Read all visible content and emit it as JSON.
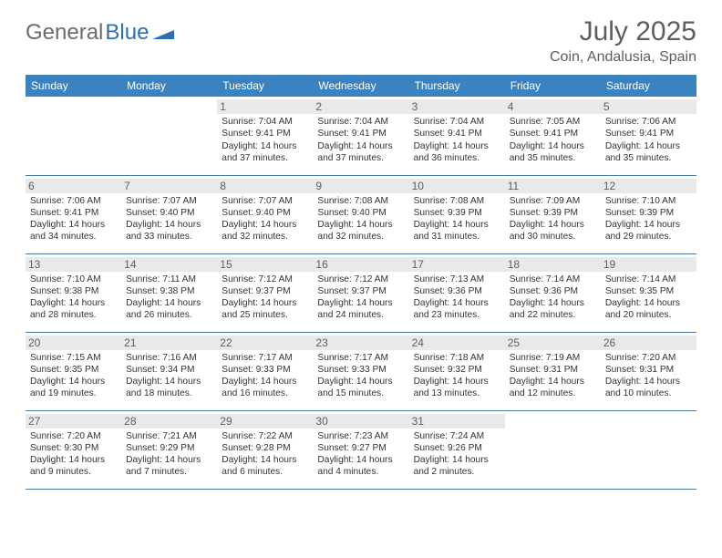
{
  "brand": {
    "part1": "General",
    "part2": "Blue"
  },
  "title": "July 2025",
  "location": "Coin, Andalusia, Spain",
  "columns": [
    "Sunday",
    "Monday",
    "Tuesday",
    "Wednesday",
    "Thursday",
    "Friday",
    "Saturday"
  ],
  "colors": {
    "header_bg": "#3b83c0",
    "header_text": "#ffffff",
    "daynum_bg": "#e9e9e9",
    "cell_border": "#4a7aa6",
    "title_color": "#5e5e5e",
    "logo_gray": "#6b6b6b",
    "logo_blue": "#2f6fb0",
    "body_text": "#333333",
    "background": "#ffffff"
  },
  "typography": {
    "title_fontsize": 30,
    "location_fontsize": 16,
    "header_fontsize": 12,
    "daynum_fontsize": 12,
    "cell_fontsize": 10.2
  },
  "weeks": [
    [
      null,
      null,
      {
        "n": "1",
        "sr": "Sunrise: 7:04 AM",
        "ss": "Sunset: 9:41 PM",
        "d1": "Daylight: 14 hours",
        "d2": "and 37 minutes."
      },
      {
        "n": "2",
        "sr": "Sunrise: 7:04 AM",
        "ss": "Sunset: 9:41 PM",
        "d1": "Daylight: 14 hours",
        "d2": "and 37 minutes."
      },
      {
        "n": "3",
        "sr": "Sunrise: 7:04 AM",
        "ss": "Sunset: 9:41 PM",
        "d1": "Daylight: 14 hours",
        "d2": "and 36 minutes."
      },
      {
        "n": "4",
        "sr": "Sunrise: 7:05 AM",
        "ss": "Sunset: 9:41 PM",
        "d1": "Daylight: 14 hours",
        "d2": "and 35 minutes."
      },
      {
        "n": "5",
        "sr": "Sunrise: 7:06 AM",
        "ss": "Sunset: 9:41 PM",
        "d1": "Daylight: 14 hours",
        "d2": "and 35 minutes."
      }
    ],
    [
      {
        "n": "6",
        "sr": "Sunrise: 7:06 AM",
        "ss": "Sunset: 9:41 PM",
        "d1": "Daylight: 14 hours",
        "d2": "and 34 minutes."
      },
      {
        "n": "7",
        "sr": "Sunrise: 7:07 AM",
        "ss": "Sunset: 9:40 PM",
        "d1": "Daylight: 14 hours",
        "d2": "and 33 minutes."
      },
      {
        "n": "8",
        "sr": "Sunrise: 7:07 AM",
        "ss": "Sunset: 9:40 PM",
        "d1": "Daylight: 14 hours",
        "d2": "and 32 minutes."
      },
      {
        "n": "9",
        "sr": "Sunrise: 7:08 AM",
        "ss": "Sunset: 9:40 PM",
        "d1": "Daylight: 14 hours",
        "d2": "and 32 minutes."
      },
      {
        "n": "10",
        "sr": "Sunrise: 7:08 AM",
        "ss": "Sunset: 9:39 PM",
        "d1": "Daylight: 14 hours",
        "d2": "and 31 minutes."
      },
      {
        "n": "11",
        "sr": "Sunrise: 7:09 AM",
        "ss": "Sunset: 9:39 PM",
        "d1": "Daylight: 14 hours",
        "d2": "and 30 minutes."
      },
      {
        "n": "12",
        "sr": "Sunrise: 7:10 AM",
        "ss": "Sunset: 9:39 PM",
        "d1": "Daylight: 14 hours",
        "d2": "and 29 minutes."
      }
    ],
    [
      {
        "n": "13",
        "sr": "Sunrise: 7:10 AM",
        "ss": "Sunset: 9:38 PM",
        "d1": "Daylight: 14 hours",
        "d2": "and 28 minutes."
      },
      {
        "n": "14",
        "sr": "Sunrise: 7:11 AM",
        "ss": "Sunset: 9:38 PM",
        "d1": "Daylight: 14 hours",
        "d2": "and 26 minutes."
      },
      {
        "n": "15",
        "sr": "Sunrise: 7:12 AM",
        "ss": "Sunset: 9:37 PM",
        "d1": "Daylight: 14 hours",
        "d2": "and 25 minutes."
      },
      {
        "n": "16",
        "sr": "Sunrise: 7:12 AM",
        "ss": "Sunset: 9:37 PM",
        "d1": "Daylight: 14 hours",
        "d2": "and 24 minutes."
      },
      {
        "n": "17",
        "sr": "Sunrise: 7:13 AM",
        "ss": "Sunset: 9:36 PM",
        "d1": "Daylight: 14 hours",
        "d2": "and 23 minutes."
      },
      {
        "n": "18",
        "sr": "Sunrise: 7:14 AM",
        "ss": "Sunset: 9:36 PM",
        "d1": "Daylight: 14 hours",
        "d2": "and 22 minutes."
      },
      {
        "n": "19",
        "sr": "Sunrise: 7:14 AM",
        "ss": "Sunset: 9:35 PM",
        "d1": "Daylight: 14 hours",
        "d2": "and 20 minutes."
      }
    ],
    [
      {
        "n": "20",
        "sr": "Sunrise: 7:15 AM",
        "ss": "Sunset: 9:35 PM",
        "d1": "Daylight: 14 hours",
        "d2": "and 19 minutes."
      },
      {
        "n": "21",
        "sr": "Sunrise: 7:16 AM",
        "ss": "Sunset: 9:34 PM",
        "d1": "Daylight: 14 hours",
        "d2": "and 18 minutes."
      },
      {
        "n": "22",
        "sr": "Sunrise: 7:17 AM",
        "ss": "Sunset: 9:33 PM",
        "d1": "Daylight: 14 hours",
        "d2": "and 16 minutes."
      },
      {
        "n": "23",
        "sr": "Sunrise: 7:17 AM",
        "ss": "Sunset: 9:33 PM",
        "d1": "Daylight: 14 hours",
        "d2": "and 15 minutes."
      },
      {
        "n": "24",
        "sr": "Sunrise: 7:18 AM",
        "ss": "Sunset: 9:32 PM",
        "d1": "Daylight: 14 hours",
        "d2": "and 13 minutes."
      },
      {
        "n": "25",
        "sr": "Sunrise: 7:19 AM",
        "ss": "Sunset: 9:31 PM",
        "d1": "Daylight: 14 hours",
        "d2": "and 12 minutes."
      },
      {
        "n": "26",
        "sr": "Sunrise: 7:20 AM",
        "ss": "Sunset: 9:31 PM",
        "d1": "Daylight: 14 hours",
        "d2": "and 10 minutes."
      }
    ],
    [
      {
        "n": "27",
        "sr": "Sunrise: 7:20 AM",
        "ss": "Sunset: 9:30 PM",
        "d1": "Daylight: 14 hours",
        "d2": "and 9 minutes."
      },
      {
        "n": "28",
        "sr": "Sunrise: 7:21 AM",
        "ss": "Sunset: 9:29 PM",
        "d1": "Daylight: 14 hours",
        "d2": "and 7 minutes."
      },
      {
        "n": "29",
        "sr": "Sunrise: 7:22 AM",
        "ss": "Sunset: 9:28 PM",
        "d1": "Daylight: 14 hours",
        "d2": "and 6 minutes."
      },
      {
        "n": "30",
        "sr": "Sunrise: 7:23 AM",
        "ss": "Sunset: 9:27 PM",
        "d1": "Daylight: 14 hours",
        "d2": "and 4 minutes."
      },
      {
        "n": "31",
        "sr": "Sunrise: 7:24 AM",
        "ss": "Sunset: 9:26 PM",
        "d1": "Daylight: 14 hours",
        "d2": "and 2 minutes."
      },
      null,
      null
    ]
  ]
}
